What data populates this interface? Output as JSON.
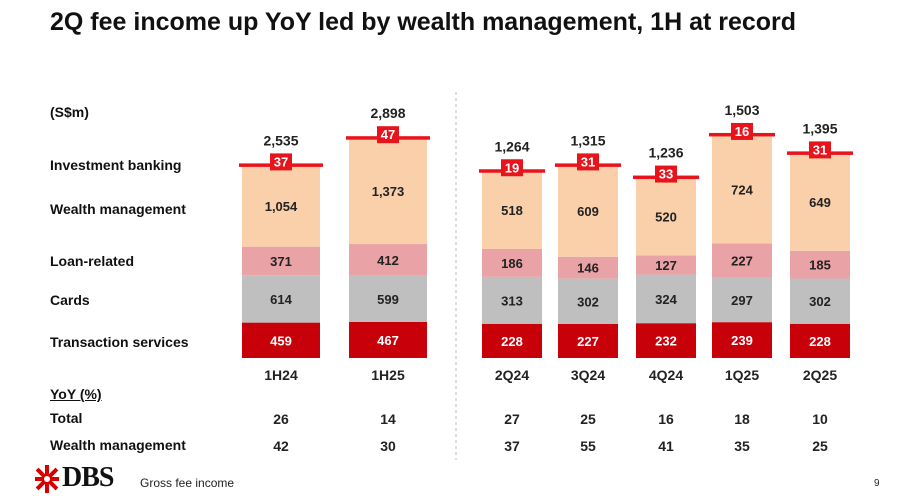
{
  "title": "2Q fee income up YoY led by wealth management, 1H at record",
  "unit_label": "(S$m)",
  "row_labels": {
    "investment_banking": "Investment banking",
    "wealth_management": "Wealth management",
    "loan_related": "Loan-related",
    "cards": "Cards",
    "transaction_services": "Transaction services"
  },
  "yoy": {
    "title": "YoY (%)",
    "total_label": "Total",
    "wm_label": "Wealth management",
    "total": [
      26,
      14,
      27,
      25,
      16,
      18,
      10
    ],
    "wealth_management": [
      42,
      30,
      37,
      55,
      41,
      35,
      25
    ]
  },
  "footnote": "Gross fee income",
  "page_number": "9",
  "logo": {
    "text": "DBS",
    "icon": "dbs-star-icon",
    "color": "#d60000"
  },
  "colors": {
    "transaction_services": "#c8000a",
    "cards": "#bfbfbf",
    "loan_related": "#e9a2a5",
    "wealth_management": "#f9d0a9",
    "investment_banking": "#e8141c"
  },
  "chart_data": {
    "type": "bar",
    "stacked": true,
    "categories": [
      "1H24",
      "1H25",
      "2Q24",
      "3Q24",
      "4Q24",
      "1Q25",
      "2Q25"
    ],
    "totals": [
      2535,
      2898,
      1264,
      1315,
      1236,
      1503,
      1395
    ],
    "total_labels": [
      "2,535",
      "2,898",
      "1,264",
      "1,315",
      "1,236",
      "1,503",
      "1,395"
    ],
    "groups": [
      {
        "categories": [
          "1H24",
          "1H25"
        ]
      },
      {
        "categories": [
          "2Q24",
          "3Q24",
          "4Q24",
          "1Q25",
          "2Q25"
        ]
      }
    ],
    "series": [
      {
        "name": "Transaction services",
        "key": "transaction_services",
        "values": [
          459,
          467,
          228,
          227,
          232,
          239,
          228
        ],
        "labels": [
          "459",
          "467",
          "228",
          "227",
          "232",
          "239",
          "228"
        ]
      },
      {
        "name": "Cards",
        "key": "cards",
        "values": [
          614,
          599,
          313,
          302,
          324,
          297,
          302
        ],
        "labels": [
          "614",
          "599",
          "313",
          "302",
          "324",
          "297",
          "302"
        ]
      },
      {
        "name": "Loan-related",
        "key": "loan_related",
        "values": [
          371,
          412,
          186,
          146,
          127,
          227,
          185
        ],
        "labels": [
          "371",
          "412",
          "186",
          "146",
          "127",
          "227",
          "185"
        ]
      },
      {
        "name": "Wealth management",
        "key": "wealth_management",
        "values": [
          1054,
          1373,
          518,
          609,
          520,
          724,
          649
        ],
        "labels": [
          "1,054",
          "1,373",
          "518",
          "609",
          "520",
          "724",
          "649"
        ]
      },
      {
        "name": "Investment banking",
        "key": "investment_banking",
        "values": [
          37,
          47,
          19,
          31,
          33,
          16,
          31
        ],
        "labels": [
          "37",
          "47",
          "19",
          "31",
          "33",
          "16",
          "31"
        ]
      }
    ]
  }
}
